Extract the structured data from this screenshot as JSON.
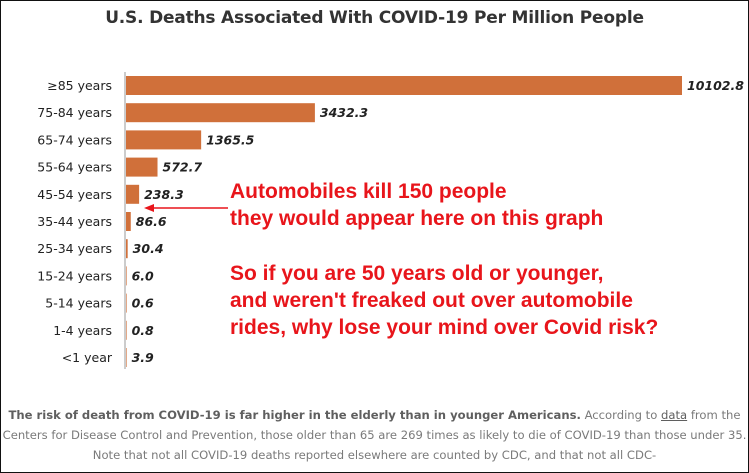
{
  "title": "U.S. Deaths Associated With COVID-19 Per Million People",
  "chart_data": {
    "type": "bar",
    "orientation": "horizontal",
    "categories": [
      "≥85 years",
      "75-84 years",
      "65-74 years",
      "55-64 years",
      "45-54 years",
      "35-44 years",
      "25-34 years",
      "15-24 years",
      "5-14 years",
      "1-4 years",
      "<1 year"
    ],
    "values": [
      10102.8,
      3432.3,
      1365.5,
      572.7,
      238.3,
      86.6,
      30.4,
      6.0,
      0.6,
      0.8,
      3.9
    ],
    "value_labels": [
      "10102.8",
      "3432.3",
      "1365.5",
      "572.7",
      "238.3",
      "86.6",
      "30.4",
      "6.0",
      "0.6",
      "0.8",
      "3.9"
    ],
    "xlim": [
      0,
      10102.8
    ],
    "grid": false,
    "bar_color": "#d0703a"
  },
  "annotation": {
    "line1": "Automobiles kill 150 people",
    "line2": "they would appear here on this graph",
    "line3": "So if you are 50 years old or younger,",
    "line4": "and weren't freaked out over automobile",
    "line5": "rides, why lose your mind over Covid risk?",
    "color": "#e8151b"
  },
  "caption": {
    "bold": "The risk of death from COVID-19 is far higher in the elderly than in younger Americans.",
    "text1": " According to ",
    "link": "data",
    "text2": " from the Centers for Disease Control and Prevention, those older than 65 are 269 times as likely to die of COVID-19 than those under 35. Note that not all COVID-19 deaths reported elsewhere are counted by CDC, and that not all CDC-"
  }
}
